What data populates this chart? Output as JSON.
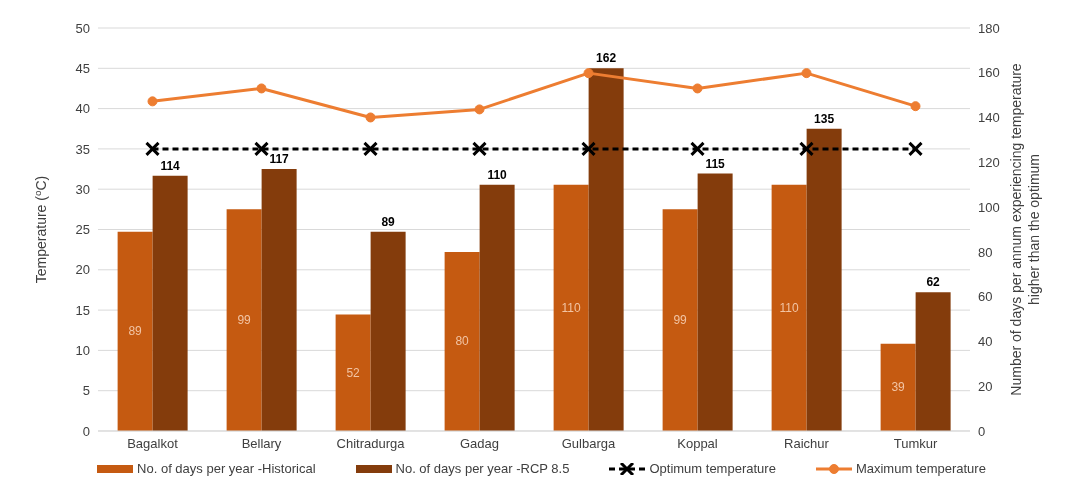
{
  "chart_data": {
    "type": "bar",
    "categories": [
      "Bagalkot",
      "Bellary",
      "Chitradurga",
      "Gadag",
      "Gulbarga",
      "Koppal",
      "Raichur",
      "Tumkur"
    ],
    "ylabel": "Temperature ($^{o}$C)",
    "y2label": "Number of days per annum experiencing temperature\nhigher than the optimum",
    "ylim": [
      0,
      50
    ],
    "yticks": [
      0,
      5,
      10,
      15,
      20,
      25,
      30,
      35,
      40,
      45,
      50
    ],
    "y2lim": [
      0,
      180
    ],
    "y2ticks": [
      0,
      20,
      40,
      60,
      80,
      100,
      120,
      140,
      160,
      180
    ],
    "grid": "y",
    "legend": "bottom",
    "series": [
      {
        "name": "No. of days per year -Historical",
        "axis": "y2",
        "color": "#c55a11",
        "values": [
          89,
          99,
          52,
          80,
          110,
          99,
          110,
          39
        ],
        "value_labels": [
          "89",
          "99",
          "52",
          "80",
          "110",
          "99",
          "110",
          "39"
        ]
      },
      {
        "name": "No. of days per year -RCP 8.5",
        "axis": "y2",
        "color": "#843c0c",
        "values": [
          114,
          117,
          89,
          110,
          162,
          115,
          135,
          62
        ],
        "value_labels": [
          "114",
          "117",
          "89",
          "110",
          "162",
          "115",
          "135",
          "62"
        ]
      },
      {
        "name": "Optimum temperature",
        "type": "line",
        "color": "#000000",
        "marker": "cross",
        "line_style": "dashed",
        "values": [
          35,
          35,
          35,
          35,
          35,
          35,
          35,
          35
        ]
      },
      {
        "name": "Maximum temperature",
        "type": "line",
        "color": "#ed7d31",
        "marker": "circle",
        "line_style": "solid",
        "values": [
          40.9,
          42.5,
          38.9,
          39.9,
          44.4,
          42.5,
          44.4,
          40.3
        ]
      }
    ]
  }
}
